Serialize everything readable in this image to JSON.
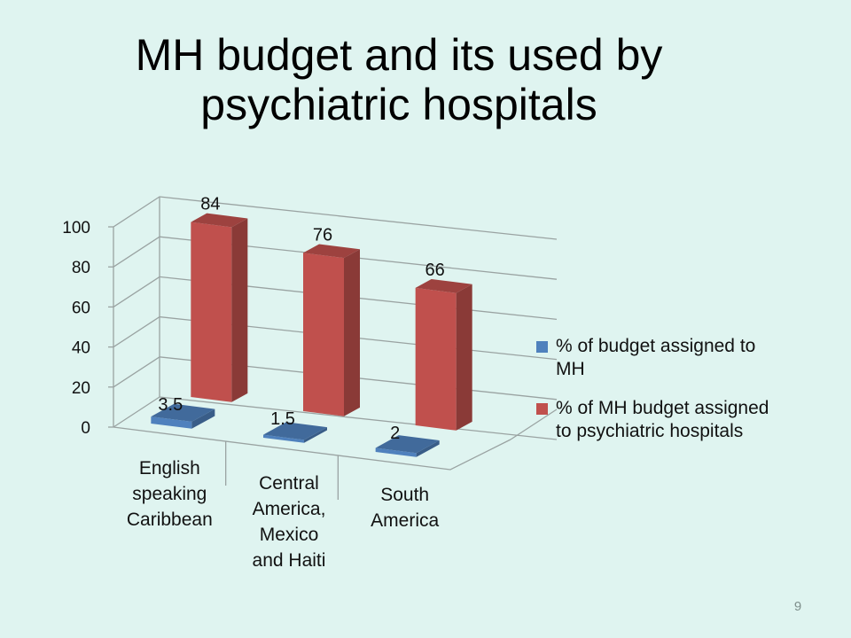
{
  "slide": {
    "title_line1": "MH budget and its used by",
    "title_line2": "psychiatric hospitals",
    "page_number": "9"
  },
  "chart_data": {
    "type": "bar",
    "categories": [
      [
        "English",
        "speaking",
        "Caribbean"
      ],
      [
        "Central",
        "America,",
        "Mexico",
        "and Haiti"
      ],
      [
        "South",
        "America"
      ]
    ],
    "series": [
      {
        "name": "% of budget assigned to MH",
        "legend_lines": [
          "% of budget assigned to",
          "MH"
        ],
        "values": [
          3.5,
          1.5,
          2
        ],
        "color": "#4f81bd"
      },
      {
        "name": "% of MH budget assigned to psychiatric hospitals",
        "legend_lines": [
          "% of MH budget assigned",
          "to psychiatric hospitals"
        ],
        "values": [
          84,
          76,
          66
        ],
        "color": "#c0504d"
      }
    ],
    "value_labels": [
      [
        "3.5",
        "1.5",
        "2"
      ],
      [
        "84",
        "76",
        "66"
      ]
    ],
    "ylim": [
      0,
      100
    ],
    "yticks": [
      "0",
      "20",
      "40",
      "60",
      "80",
      "100"
    ],
    "grid": true,
    "legend_position": "right",
    "title": "",
    "xlabel": "",
    "ylabel": ""
  }
}
